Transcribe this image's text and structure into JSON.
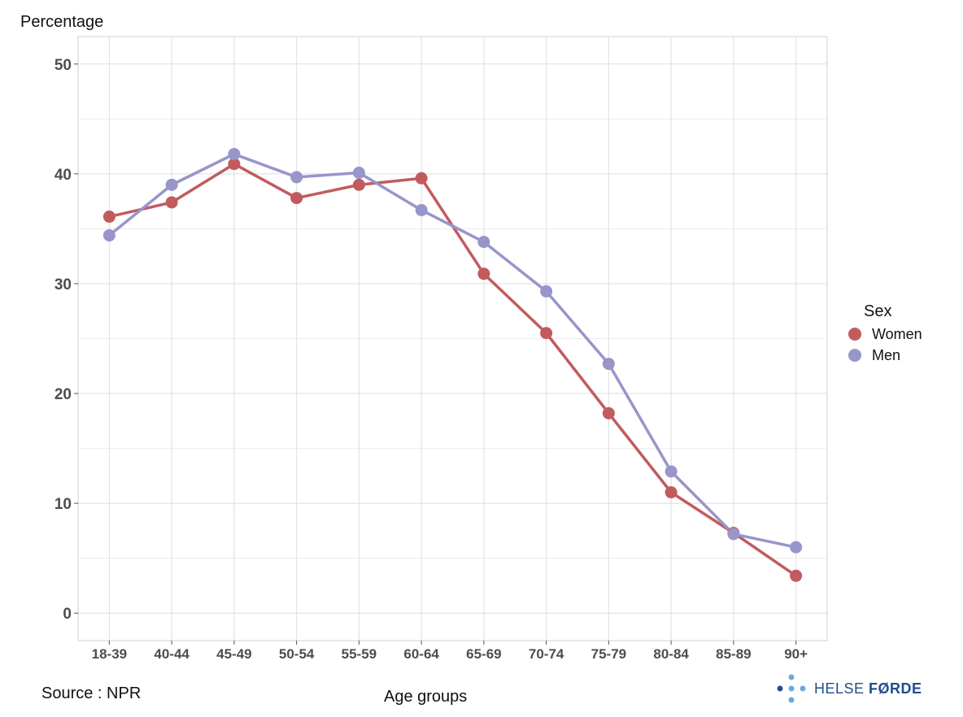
{
  "y_axis_title": "Percentage",
  "source": "Source : NPR",
  "x_axis_title": "Age groups",
  "legend": {
    "title": "Sex",
    "items": [
      {
        "label": "Women",
        "color": "#c25b5e"
      },
      {
        "label": "Men",
        "color": "#9795c9"
      }
    ]
  },
  "logo": {
    "text_light": "HELSE ",
    "text_bold": "FØRDE",
    "color": "#1f4e8c",
    "dot_color": "#6ea8dc"
  },
  "chart_data": {
    "type": "line",
    "xlabel": "Age groups",
    "ylabel": "Percentage",
    "ylim": [
      -2.5,
      52.5
    ],
    "yticks": [
      0,
      10,
      20,
      30,
      40,
      50
    ],
    "grid": true,
    "legend_position": "right",
    "categories": [
      "18-39",
      "40-44",
      "45-49",
      "50-54",
      "55-59",
      "60-64",
      "65-69",
      "70-74",
      "75-79",
      "80-84",
      "85-89",
      "90+"
    ],
    "series": [
      {
        "name": "Women",
        "color": "#c25b5e",
        "values": [
          36.1,
          37.4,
          40.9,
          37.8,
          39.0,
          39.6,
          30.9,
          25.5,
          18.2,
          11.0,
          7.3,
          3.4
        ]
      },
      {
        "name": "Men",
        "color": "#9795c9",
        "values": [
          34.4,
          39.0,
          41.8,
          39.7,
          40.1,
          36.7,
          33.8,
          29.3,
          22.7,
          12.9,
          7.2,
          6.0
        ]
      }
    ]
  }
}
